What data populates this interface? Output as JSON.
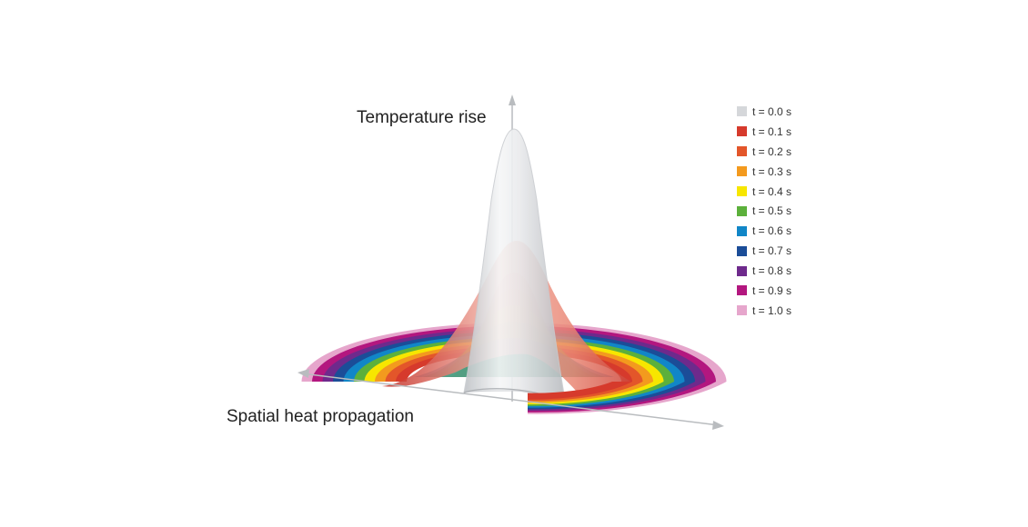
{
  "labels": {
    "y_axis": "Temperature rise",
    "x_axis": "Spatial heat propagation"
  },
  "legend": [
    {
      "label": "t = 0.0 s",
      "color": "#d5d7da"
    },
    {
      "label": "t = 0.1 s",
      "color": "#d63a2c"
    },
    {
      "label": "t = 0.2 s",
      "color": "#e3562a"
    },
    {
      "label": "t = 0.3 s",
      "color": "#f39a1e"
    },
    {
      "label": "t = 0.4 s",
      "color": "#f7e600"
    },
    {
      "label": "t = 0.5 s",
      "color": "#5cb03b"
    },
    {
      "label": "t = 0.6 s",
      "color": "#1186c7"
    },
    {
      "label": "t = 0.7 s",
      "color": "#1b4d98"
    },
    {
      "label": "t = 0.8 s",
      "color": "#6e2a8c"
    },
    {
      "label": "t = 0.9 s",
      "color": "#b3177f"
    },
    {
      "label": "t = 1.0 s",
      "color": "#e6a6cc"
    }
  ],
  "colors": {
    "axis": "#b9bcbf",
    "gray_peak": "#d5d7da"
  }
}
